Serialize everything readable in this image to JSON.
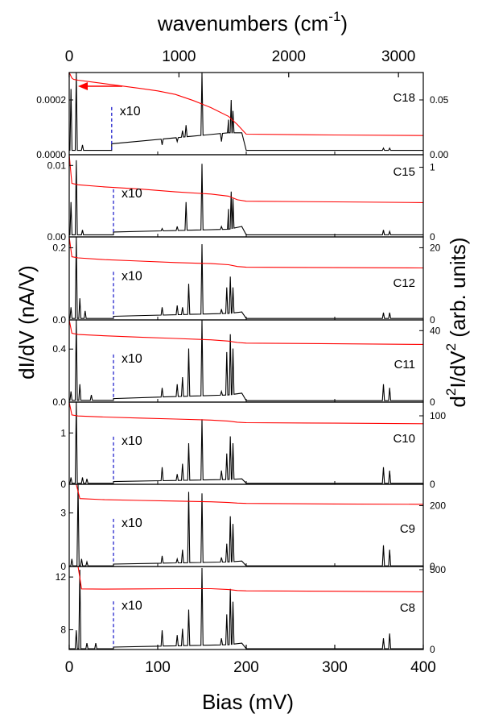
{
  "figure": {
    "top_axis_title": "wavenumbers (cm",
    "top_axis_superscript": "-1",
    "top_axis_close": ")",
    "bottom_axis_title": "Bias (mV)",
    "left_axis_title": "dI/dV  (nA/V)",
    "right_axis_title_prefix": "d",
    "right_axis_title_sup1": "2",
    "right_axis_title_mid": "I/dV",
    "right_axis_title_sup2": "2",
    "right_axis_title_suffix": "  (arb. units)",
    "top_ticks": [
      0,
      1000,
      2000,
      3000
    ],
    "bottom_ticks": [
      0,
      100,
      200,
      300,
      400
    ],
    "scale_marker_label": "x10",
    "colors": {
      "dIdV": "#ff0000",
      "d2IdV2": "#000000",
      "marker": "#2222cc",
      "arrow": "#ff0000"
    }
  },
  "chart_data": [
    {
      "type": "line",
      "panel": "C18",
      "label": "C18",
      "xlim": [
        0,
        400
      ],
      "ylim_left": [
        0,
        0.0003
      ],
      "ylim_right": [
        0,
        0.075
      ],
      "left_ticks": [
        {
          "v": 0,
          "t": "0.0000"
        },
        {
          "v": 0.0002,
          "t": "0.0002"
        }
      ],
      "right_ticks": [
        {
          "v": 0,
          "t": "0.00"
        },
        {
          "v": 0.05,
          "t": "0.05"
        }
      ],
      "arrow": {
        "from_mV": 60,
        "to_mV": 10,
        "y_left": 0.00025
      },
      "marker_x_mV": 48,
      "series": [
        {
          "name": "dI/dV",
          "axis": "left",
          "x": [
            0,
            3,
            5,
            10,
            20,
            50,
            80,
            100,
            120,
            140,
            160,
            180,
            190,
            200,
            300,
            400
          ],
          "y": [
            0.0003,
            0.00028,
            0.000275,
            0.000272,
            0.000268,
            0.000255,
            0.000242,
            0.000233,
            0.00022,
            0.000198,
            0.000172,
            0.00014,
            0.00011,
            7.5e-05,
            7.2e-05,
            7e-05
          ]
        },
        {
          "name": "d2I/dV2",
          "axis": "right",
          "baseline": [
            0,
            0.004,
            48,
            0.004,
            48,
            0.01,
            180,
            0.02,
            195,
            0.02,
            200,
            0.004,
            400,
            0.004
          ],
          "peaks": [
            [
              2,
              0.06
            ],
            [
              8,
              0.075
            ],
            [
              15,
              0.009
            ],
            [
              105,
              0.009
            ],
            [
              122,
              0.012
            ],
            [
              128,
              0.022
            ],
            [
              132,
              0.027
            ],
            [
              150,
              0.075
            ],
            [
              172,
              0.012
            ],
            [
              180,
              0.032
            ],
            [
              183,
              0.05
            ],
            [
              185,
              0.04
            ],
            [
              355,
              0.006
            ],
            [
              362,
              0.006
            ]
          ]
        }
      ]
    },
    {
      "type": "line",
      "panel": "C15",
      "label": "C15",
      "xlim": [
        0,
        400
      ],
      "ylim_left": [
        0,
        0.0115
      ],
      "ylim_right": [
        0,
        1.18
      ],
      "left_ticks": [
        {
          "v": 0,
          "t": "0.00"
        },
        {
          "v": 0.01,
          "t": "0.01"
        }
      ],
      "right_ticks": [
        {
          "v": 0,
          "t": "0"
        },
        {
          "v": 1,
          "t": "1"
        }
      ],
      "marker_x_mV": 50,
      "series": [
        {
          "name": "dI/dV",
          "axis": "left",
          "x": [
            0,
            3,
            10,
            40,
            80,
            120,
            160,
            180,
            190,
            200,
            300,
            400
          ],
          "y": [
            0.0115,
            0.0075,
            0.0073,
            0.007,
            0.0067,
            0.0063,
            0.006,
            0.0057,
            0.0052,
            0.005,
            0.0049,
            0.0048
          ]
        },
        {
          "name": "d2I/dV2",
          "axis": "right",
          "baseline": [
            0,
            0.03,
            50,
            0.03,
            50,
            0.07,
            180,
            0.11,
            195,
            0.15,
            200,
            0.03,
            400,
            0.03
          ],
          "peaks": [
            [
              2,
              0.5
            ],
            [
              8,
              1.1
            ],
            [
              15,
              0.1
            ],
            [
              105,
              0.12
            ],
            [
              122,
              0.15
            ],
            [
              132,
              0.5
            ],
            [
              150,
              1.05
            ],
            [
              172,
              0.15
            ],
            [
              180,
              0.4
            ],
            [
              183,
              0.65
            ],
            [
              185,
              0.55
            ],
            [
              355,
              0.1
            ],
            [
              362,
              0.08
            ]
          ]
        }
      ]
    },
    {
      "type": "line",
      "panel": "C12",
      "label": "C12",
      "xlim": [
        0,
        400
      ],
      "ylim_left": [
        0,
        0.23
      ],
      "ylim_right": [
        0,
        23
      ],
      "left_ticks": [
        {
          "v": 0,
          "t": "0.0"
        },
        {
          "v": 0.2,
          "t": "0.2"
        }
      ],
      "right_ticks": [
        {
          "v": 0,
          "t": "0"
        },
        {
          "v": 20,
          "t": "20"
        }
      ],
      "marker_x_mV": 50,
      "series": [
        {
          "name": "dI/dV",
          "axis": "left",
          "x": [
            0,
            3,
            10,
            40,
            80,
            120,
            160,
            180,
            190,
            200,
            300,
            400
          ],
          "y": [
            0.23,
            0.175,
            0.172,
            0.167,
            0.163,
            0.159,
            0.156,
            0.153,
            0.148,
            0.146,
            0.145,
            0.144
          ]
        },
        {
          "name": "d2I/dV2",
          "axis": "right",
          "baseline": [
            0,
            0.4,
            50,
            0.4,
            50,
            1.0,
            180,
            1.8,
            195,
            2.2,
            200,
            0.4,
            400,
            0.4
          ],
          "peaks": [
            [
              2,
              3.5
            ],
            [
              8,
              23
            ],
            [
              12,
              6
            ],
            [
              18,
              2.5
            ],
            [
              105,
              3.5
            ],
            [
              122,
              4
            ],
            [
              128,
              3.5
            ],
            [
              135,
              10
            ],
            [
              150,
              21
            ],
            [
              172,
              3
            ],
            [
              178,
              9
            ],
            [
              182,
              12
            ],
            [
              185,
              9
            ],
            [
              355,
              2
            ],
            [
              362,
              2
            ]
          ]
        }
      ]
    },
    {
      "type": "line",
      "panel": "C11",
      "label": "C11",
      "xlim": [
        0,
        400
      ],
      "ylim_left": [
        0,
        0.62
      ],
      "ylim_right": [
        0,
        46
      ],
      "left_ticks": [
        {
          "v": 0,
          "t": "0.0"
        },
        {
          "v": 0.4,
          "t": "0.4"
        }
      ],
      "right_ticks": [
        {
          "v": 0,
          "t": "0"
        },
        {
          "v": 40,
          "t": "40"
        }
      ],
      "marker_x_mV": 50,
      "series": [
        {
          "name": "dI/dV",
          "axis": "left",
          "x": [
            0,
            3,
            10,
            40,
            80,
            120,
            160,
            180,
            190,
            200,
            300,
            400
          ],
          "y": [
            0.62,
            0.52,
            0.51,
            0.5,
            0.49,
            0.48,
            0.47,
            0.46,
            0.45,
            0.445,
            0.44,
            0.435
          ]
        },
        {
          "name": "d2I/dV2",
          "axis": "right",
          "baseline": [
            0,
            1,
            50,
            1,
            50,
            2,
            180,
            4,
            195,
            5,
            200,
            0.8,
            400,
            0.8
          ],
          "peaks": [
            [
              2,
              6
            ],
            [
              8,
              46
            ],
            [
              12,
              10
            ],
            [
              25,
              4
            ],
            [
              105,
              8
            ],
            [
              122,
              10
            ],
            [
              128,
              14
            ],
            [
              135,
              30
            ],
            [
              150,
              46
            ],
            [
              172,
              6
            ],
            [
              178,
              28
            ],
            [
              182,
              38
            ],
            [
              185,
              30
            ],
            [
              355,
              10
            ],
            [
              362,
              8
            ]
          ]
        }
      ]
    },
    {
      "type": "line",
      "panel": "C10",
      "label": "C10",
      "xlim": [
        0,
        400
      ],
      "ylim_left": [
        0,
        1.6
      ],
      "ylim_right": [
        0,
        120
      ],
      "left_ticks": [
        {
          "v": 0,
          "t": "0"
        },
        {
          "v": 1,
          "t": "1"
        }
      ],
      "right_ticks": [
        {
          "v": 0,
          "t": "0"
        },
        {
          "v": 100,
          "t": "100"
        }
      ],
      "marker_x_mV": 50,
      "series": [
        {
          "name": "dI/dV",
          "axis": "left",
          "x": [
            0,
            3,
            10,
            40,
            80,
            120,
            160,
            180,
            190,
            200,
            300,
            400
          ],
          "y": [
            1.6,
            1.35,
            1.33,
            1.31,
            1.29,
            1.27,
            1.25,
            1.23,
            1.21,
            1.2,
            1.19,
            1.18
          ]
        },
        {
          "name": "d2I/dV2",
          "axis": "right",
          "baseline": [
            0,
            1.5,
            50,
            1.5,
            50,
            4,
            180,
            7,
            195,
            8,
            200,
            1.5,
            400,
            1.5
          ],
          "peaks": [
            [
              2,
              10
            ],
            [
              8,
              120
            ],
            [
              15,
              10
            ],
            [
              20,
              8
            ],
            [
              105,
              25
            ],
            [
              122,
              15
            ],
            [
              128,
              30
            ],
            [
              135,
              60
            ],
            [
              150,
              95
            ],
            [
              172,
              20
            ],
            [
              178,
              45
            ],
            [
              182,
              70
            ],
            [
              185,
              60
            ],
            [
              355,
              25
            ],
            [
              362,
              20
            ]
          ]
        }
      ]
    },
    {
      "type": "line",
      "panel": "C9",
      "label": "C9",
      "xlim": [
        0,
        400
      ],
      "ylim_left": [
        0,
        4.6
      ],
      "ylim_right": [
        0,
        270
      ],
      "left_ticks": [
        {
          "v": 0,
          "t": "0"
        },
        {
          "v": 3,
          "t": "3"
        }
      ],
      "right_ticks": [
        {
          "v": 0,
          "t": "0"
        },
        {
          "v": 200,
          "t": "200"
        }
      ],
      "marker_x_mV": 50,
      "series": [
        {
          "name": "dI/dV",
          "axis": "left",
          "x": [
            0,
            8,
            12,
            40,
            80,
            120,
            160,
            180,
            190,
            200,
            300,
            400
          ],
          "y": [
            4.6,
            4.6,
            3.8,
            3.74,
            3.7,
            3.66,
            3.62,
            3.58,
            3.55,
            3.53,
            3.5,
            3.48
          ]
        },
        {
          "name": "d2I/dV2",
          "axis": "right",
          "baseline": [
            0,
            2,
            50,
            2,
            50,
            8,
            180,
            15,
            195,
            18,
            200,
            2,
            400,
            2
          ],
          "peaks": [
            [
              3,
              25
            ],
            [
              10,
              270
            ],
            [
              14,
              25
            ],
            [
              20,
              15
            ],
            [
              105,
              35
            ],
            [
              122,
              25
            ],
            [
              128,
              55
            ],
            [
              135,
              245
            ],
            [
              150,
              240
            ],
            [
              172,
              30
            ],
            [
              178,
              75
            ],
            [
              182,
              165
            ],
            [
              185,
              140
            ],
            [
              355,
              70
            ],
            [
              362,
              55
            ]
          ]
        }
      ]
    },
    {
      "type": "line",
      "panel": "C8",
      "label": "C8",
      "xlim": [
        0,
        400
      ],
      "ylim_left": [
        6.5,
        12.8
      ],
      "ylim_right": [
        0,
        520
      ],
      "left_ticks": [
        {
          "v": 8,
          "t": "8"
        },
        {
          "v": 12,
          "t": "12"
        }
      ],
      "right_ticks": [
        {
          "v": 0,
          "t": "0"
        },
        {
          "v": 500,
          "t": "500"
        }
      ],
      "marker_x_mV": 50,
      "series": [
        {
          "name": "dI/dV",
          "axis": "left",
          "x": [
            0,
            10,
            14,
            40,
            80,
            120,
            160,
            180,
            190,
            200,
            300,
            400
          ],
          "y": [
            12.8,
            12.8,
            11.1,
            11.08,
            11.1,
            11.12,
            11.12,
            11.05,
            10.98,
            10.95,
            10.92,
            10.88
          ]
        },
        {
          "name": "d2I/dV2",
          "axis": "right",
          "baseline": [
            0,
            5,
            50,
            5,
            50,
            15,
            180,
            30,
            195,
            40,
            200,
            5,
            400,
            5
          ],
          "peaks": [
            [
              8,
              120
            ],
            [
              12,
              500
            ],
            [
              20,
              40
            ],
            [
              30,
              40
            ],
            [
              105,
              120
            ],
            [
              122,
              90
            ],
            [
              128,
              130
            ],
            [
              135,
              250
            ],
            [
              150,
              510
            ],
            [
              172,
              70
            ],
            [
              178,
              220
            ],
            [
              182,
              380
            ],
            [
              185,
              300
            ],
            [
              355,
              70
            ],
            [
              362,
              100
            ]
          ]
        }
      ]
    }
  ]
}
